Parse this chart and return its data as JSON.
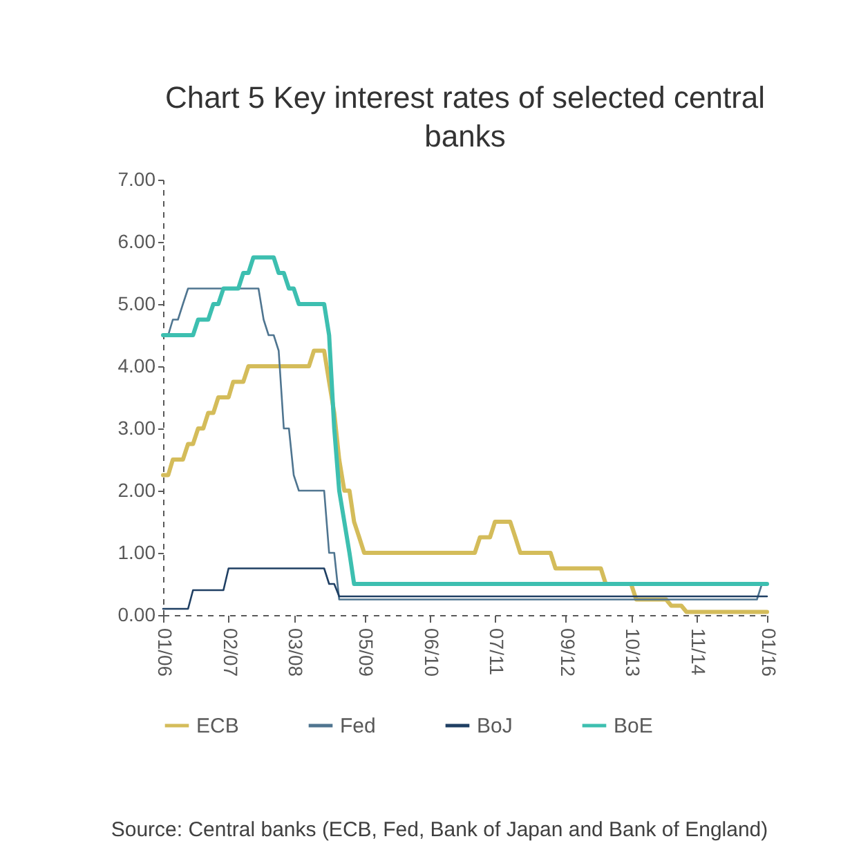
{
  "chart_data": {
    "type": "line",
    "title": "Chart 5 Key interest rates of selected central banks",
    "xlim": [
      "2006-01",
      "2016-01"
    ],
    "xticks": [
      {
        "value": "2006-01",
        "label": "01/06"
      },
      {
        "value": "2007-02",
        "label": "02/07"
      },
      {
        "value": "2008-03",
        "label": "03/08"
      },
      {
        "value": "2009-05",
        "label": "05/09"
      },
      {
        "value": "2010-06",
        "label": "06/10"
      },
      {
        "value": "2011-07",
        "label": "07/11"
      },
      {
        "value": "2012-09",
        "label": "09/12"
      },
      {
        "value": "2013-10",
        "label": "10/13"
      },
      {
        "value": "2014-11",
        "label": "11/14"
      },
      {
        "value": "2016-01",
        "label": "01/16"
      }
    ],
    "ylim": [
      0,
      7
    ],
    "yticks": [
      {
        "value": 0,
        "label": "0.00"
      },
      {
        "value": 1,
        "label": "1.00"
      },
      {
        "value": 2,
        "label": "2.00"
      },
      {
        "value": 3,
        "label": "3.00"
      },
      {
        "value": 4,
        "label": "4.00"
      },
      {
        "value": 5,
        "label": "5.00"
      },
      {
        "value": 6,
        "label": "6.00"
      },
      {
        "value": 7,
        "label": "7.00"
      }
    ],
    "grid": false,
    "legend": "bottom",
    "marker": "none",
    "line_style": "solid",
    "annotations": [
      "Source: Central banks (ECB, Fed, Bank of Japan and Bank of England)"
    ],
    "series": [
      {
        "name": "ECB",
        "color": "#d4bc5a",
        "x": [
          "2006-01",
          "2006-02",
          "2006-03",
          "2006-05",
          "2006-06",
          "2006-07",
          "2006-08",
          "2006-09",
          "2006-10",
          "2006-11",
          "2006-12",
          "2007-02",
          "2007-03",
          "2007-05",
          "2007-06",
          "2008-06",
          "2008-07",
          "2008-09",
          "2008-10",
          "2008-11",
          "2008-12",
          "2009-01",
          "2009-02",
          "2009-03",
          "2009-04",
          "2009-05",
          "2011-03",
          "2011-04",
          "2011-06",
          "2011-07",
          "2011-10",
          "2011-11",
          "2011-12",
          "2012-06",
          "2012-07",
          "2013-04",
          "2013-05",
          "2013-10",
          "2013-11",
          "2014-05",
          "2014-06",
          "2014-08",
          "2014-09",
          "2016-01"
        ],
        "values": [
          2.25,
          2.25,
          2.5,
          2.5,
          2.75,
          2.75,
          3.0,
          3.0,
          3.25,
          3.25,
          3.5,
          3.5,
          3.75,
          3.75,
          4.0,
          4.0,
          4.25,
          4.25,
          3.75,
          3.25,
          2.5,
          2.0,
          2.0,
          1.5,
          1.25,
          1.0,
          1.0,
          1.25,
          1.25,
          1.5,
          1.5,
          1.25,
          1.0,
          1.0,
          0.75,
          0.75,
          0.5,
          0.5,
          0.25,
          0.25,
          0.15,
          0.15,
          0.05,
          0.05
        ]
      },
      {
        "name": "Fed",
        "color": "#4f7590",
        "x": [
          "2006-01",
          "2006-02",
          "2006-03",
          "2006-04",
          "2006-05",
          "2006-06",
          "2007-08",
          "2007-09",
          "2007-10",
          "2007-11",
          "2007-12",
          "2008-01",
          "2008-02",
          "2008-03",
          "2008-04",
          "2008-09",
          "2008-10",
          "2008-11",
          "2008-12",
          "2015-11",
          "2015-12",
          "2016-01"
        ],
        "values": [
          4.5,
          4.5,
          4.75,
          4.75,
          5.0,
          5.25,
          5.25,
          4.75,
          4.5,
          4.5,
          4.25,
          3.0,
          3.0,
          2.25,
          2.0,
          2.0,
          1.0,
          1.0,
          0.25,
          0.25,
          0.5,
          0.5
        ]
      },
      {
        "name": "BoJ",
        "color": "#1f3f63",
        "x": [
          "2006-01",
          "2006-06",
          "2006-07",
          "2007-01",
          "2007-02",
          "2008-09",
          "2008-10",
          "2008-11",
          "2008-12",
          "2016-01"
        ],
        "values": [
          0.1,
          0.1,
          0.4,
          0.4,
          0.75,
          0.75,
          0.5,
          0.5,
          0.3,
          0.3
        ]
      },
      {
        "name": "BoE",
        "color": "#3dbfb0",
        "x": [
          "2006-01",
          "2006-07",
          "2006-08",
          "2006-10",
          "2006-11",
          "2006-12",
          "2007-01",
          "2007-04",
          "2007-05",
          "2007-06",
          "2007-07",
          "2007-11",
          "2007-12",
          "2008-01",
          "2008-02",
          "2008-03",
          "2008-04",
          "2008-09",
          "2008-10",
          "2008-11",
          "2008-12",
          "2009-01",
          "2009-02",
          "2009-03",
          "2016-01"
        ],
        "values": [
          4.5,
          4.5,
          4.75,
          4.75,
          5.0,
          5.0,
          5.25,
          5.25,
          5.5,
          5.5,
          5.75,
          5.75,
          5.5,
          5.5,
          5.25,
          5.25,
          5.0,
          5.0,
          4.5,
          3.0,
          2.0,
          1.5,
          1.0,
          0.5,
          0.5
        ]
      }
    ]
  }
}
